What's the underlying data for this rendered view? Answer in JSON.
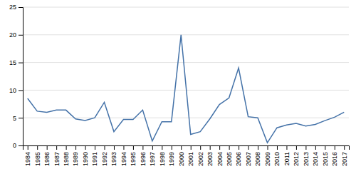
{
  "chart_data": {
    "type": "line",
    "x": [
      1984,
      1985,
      1986,
      1987,
      1988,
      1989,
      1990,
      1991,
      1992,
      1993,
      1994,
      1995,
      1996,
      1997,
      1998,
      1999,
      2000,
      2001,
      2002,
      2003,
      2004,
      2005,
      2006,
      2007,
      2008,
      2009,
      2010,
      2011,
      2012,
      2013,
      2014,
      2015,
      2016,
      2017
    ],
    "values": [
      8.5,
      6.2,
      6.0,
      6.4,
      6.4,
      4.8,
      4.5,
      5.0,
      7.8,
      2.5,
      4.7,
      4.7,
      6.4,
      0.8,
      4.3,
      4.3,
      20.0,
      2.0,
      2.5,
      4.8,
      7.4,
      8.6,
      14.0,
      5.2,
      5.0,
      0.5,
      3.2,
      3.7,
      4.0,
      3.5,
      3.8,
      4.5,
      5.1,
      6.0
    ],
    "color": "#4472a8",
    "xlim": [
      1983.5,
      2017.5
    ],
    "xticks": [
      1984,
      1985,
      1986,
      1987,
      1988,
      1989,
      1990,
      1991,
      1992,
      1993,
      1994,
      1995,
      1996,
      1997,
      1998,
      1999,
      2000,
      2001,
      2002,
      2003,
      2004,
      2005,
      2006,
      2007,
      2008,
      2009,
      2010,
      2011,
      2012,
      2013,
      2014,
      2015,
      2016,
      2017
    ],
    "ylim": [
      0,
      25
    ],
    "yticks": [
      0,
      5,
      10,
      15,
      20,
      25
    ],
    "grid": true
  }
}
